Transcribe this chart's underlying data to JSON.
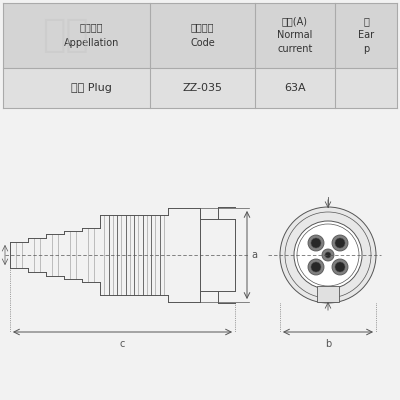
{
  "bg_color": "#f2f2f2",
  "table_bg_header": "#d8d8d8",
  "table_bg_data": "#e8e8e8",
  "table_line_color": "#aaaaaa",
  "draw_color": "#555555",
  "dim_color": "#555555",
  "title_row": {
    "col1_line1": "产品名称",
    "col1_line2": "Appellation",
    "col2_line1": "产品型号",
    "col2_line2": "Code",
    "col3_line1": "电流(A)",
    "col3_line2": "Normal",
    "col3_line3": "current",
    "col4_line1": "接",
    "col4_line2": "Ear",
    "col4_line3": "p"
  },
  "data_row": {
    "col1": "插头 Plug",
    "col2": "ZZ-035",
    "col3": "63A",
    "col4": ""
  },
  "watermark": "客户",
  "label_a": "a",
  "label_b": "b",
  "label_c": "c"
}
